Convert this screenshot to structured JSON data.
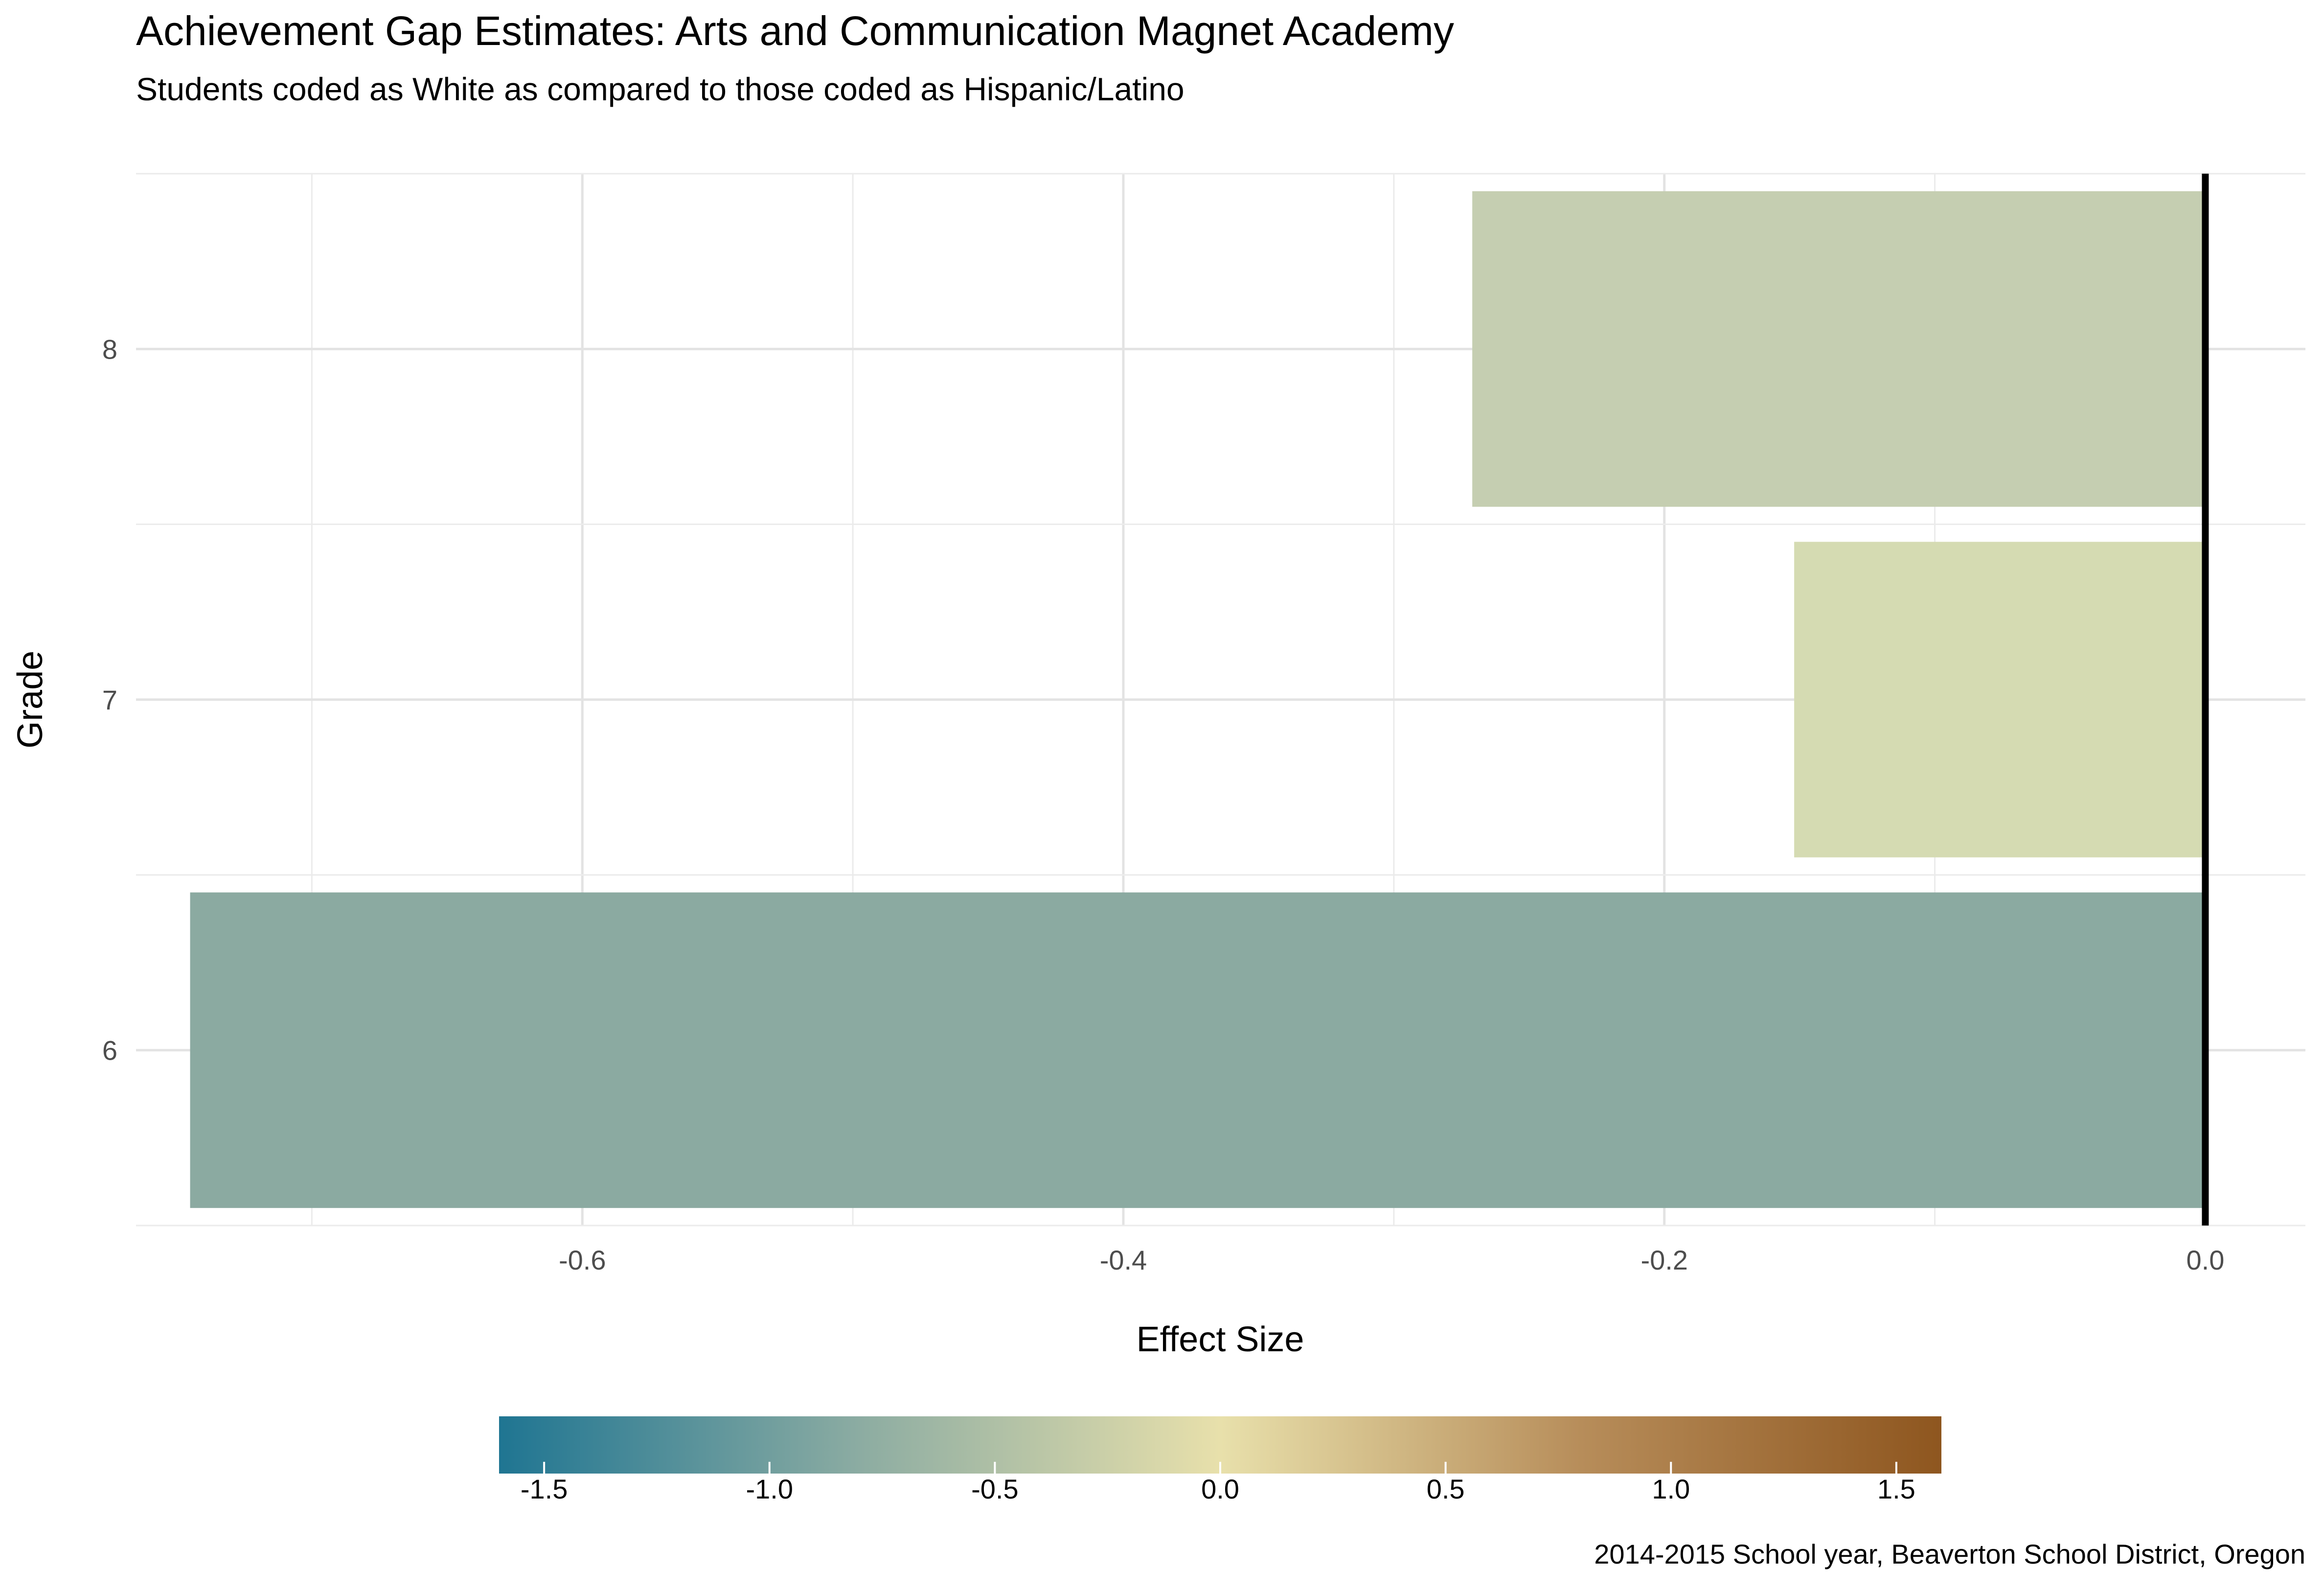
{
  "chart_data": {
    "type": "bar",
    "orientation": "horizontal",
    "title": "Achievement Gap Estimates: Arts and Communication Magnet Academy",
    "subtitle": "Students coded as White as compared to those coded as Hispanic/Latino",
    "xlabel": "Effect Size",
    "ylabel": "Grade",
    "caption": "2014-2015 School year, Beaverton  School District, Oregon",
    "categories": [
      "6",
      "7",
      "8"
    ],
    "values": [
      -0.745,
      -0.152,
      -0.271
    ],
    "bar_colors": [
      "#8baaa1",
      "#d5dbb2",
      "#c5ceb1"
    ],
    "xlim": [
      -0.765,
      0.037
    ],
    "x_ticks": [
      {
        "value": -0.6,
        "label": "-0.6"
      },
      {
        "value": -0.4,
        "label": "-0.4"
      },
      {
        "value": -0.2,
        "label": "-0.2"
      },
      {
        "value": 0.0,
        "label": "0.0"
      }
    ],
    "x_minor_ticks": [
      -0.7,
      -0.5,
      -0.3,
      -0.1
    ],
    "reference_line": 0,
    "grid": true,
    "legend": {
      "position": "bottom",
      "type": "colorbar",
      "range": [
        -1.6,
        1.6
      ],
      "ticks": [
        {
          "value": -1.5,
          "label": "-1.5"
        },
        {
          "value": -1.0,
          "label": "-1.0"
        },
        {
          "value": -0.5,
          "label": "-0.5"
        },
        {
          "value": 0.0,
          "label": "0.0"
        },
        {
          "value": 0.5,
          "label": "0.5"
        },
        {
          "value": 1.0,
          "label": "1.0"
        },
        {
          "value": 1.5,
          "label": "1.5"
        }
      ],
      "colors": [
        "#1f7592",
        "#8caca2",
        "#e8e0ab",
        "#b78d5a",
        "#8e561f"
      ]
    }
  }
}
